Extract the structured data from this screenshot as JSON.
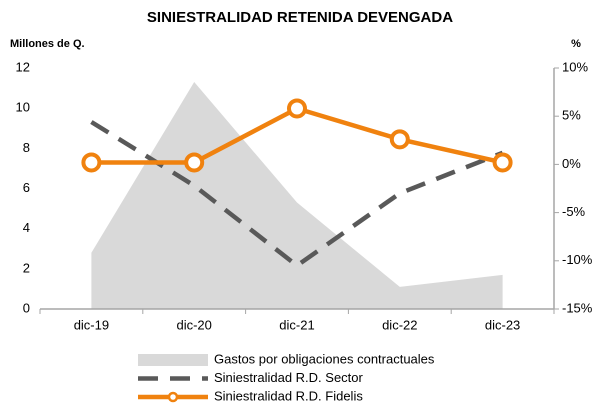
{
  "chart_data": {
    "type": "combo",
    "title": "SINIESTRALIDAD RETENIDA DEVENGADA",
    "y_label": "Millones de  Q.",
    "y2_label": "%",
    "categories": [
      "dic-19",
      "dic-20",
      "dic-21",
      "dic-22",
      "dic-23"
    ],
    "series": [
      {
        "name": "Gastos por obligaciones contractuales",
        "kind": "area",
        "color": "#d9d9d9",
        "values": [
          2.8,
          11.3,
          5.3,
          1.1,
          1.7
        ]
      },
      {
        "name": "Siniestralidad R.D. Sector",
        "kind": "dashed-line",
        "color": "#595959",
        "axis": "y2",
        "values": [
          4.4,
          -2.2,
          -10.5,
          -3.0,
          1.2
        ]
      },
      {
        "name": "Siniestralidad R.D. Fidelis",
        "kind": "marker-line",
        "color": "#f0820f",
        "axis": "y2",
        "values": [
          0.2,
          0.2,
          5.8,
          2.6,
          0.2
        ]
      }
    ],
    "ylim": [
      0,
      12
    ],
    "yticks": [
      0,
      2,
      4,
      6,
      8,
      10,
      12
    ],
    "y2lim": [
      -15,
      10
    ],
    "y2ticks": [
      {
        "value": -15,
        "label": "-15%"
      },
      {
        "value": -10,
        "label": "-10%"
      },
      {
        "value": -5,
        "label": "-5%"
      },
      {
        "value": 0,
        "label": "0%"
      },
      {
        "value": 5,
        "label": "5%"
      },
      {
        "value": 10,
        "label": "10%"
      }
    ]
  }
}
